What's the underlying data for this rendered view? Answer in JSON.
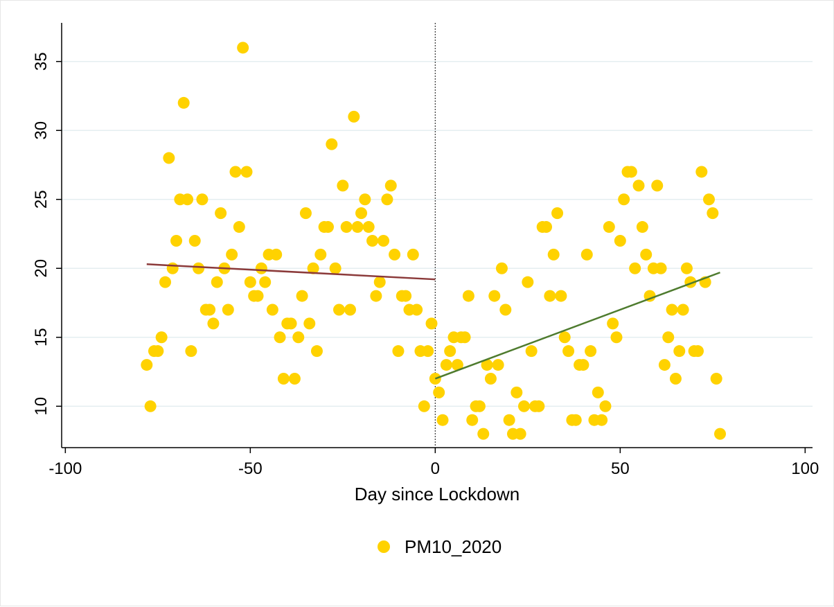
{
  "chart_data": {
    "type": "scatter",
    "title": "",
    "xlabel": "Day since Lockdown",
    "ylabel": "",
    "xlim": [
      -101,
      102
    ],
    "ylim": [
      7.0,
      37.8
    ],
    "xticks": [
      -100,
      -50,
      0,
      50,
      100
    ],
    "xtick_labels": [
      "-100",
      "-50",
      "0",
      "50",
      "100"
    ],
    "yticks": [
      10,
      15,
      20,
      25,
      30,
      35
    ],
    "ytick_labels": [
      "10",
      "15",
      "20",
      "25",
      "30",
      "35"
    ],
    "grid": "horizontal",
    "legend": {
      "position": "bottom-center",
      "entries": [
        "PM10_2020"
      ]
    },
    "colors": {
      "points": "#FFD200",
      "pre_fit": "#8B3A3A",
      "post_fit": "#4E7B2E",
      "grid": "#E4EEF0",
      "reference_line": "#333333"
    },
    "reference_line_x": 0,
    "series": [
      {
        "name": "PM10_2020",
        "points": [
          [
            -78,
            13
          ],
          [
            -77,
            10
          ],
          [
            -76,
            14
          ],
          [
            -75,
            14
          ],
          [
            -74,
            15
          ],
          [
            -73,
            19
          ],
          [
            -72,
            28
          ],
          [
            -71,
            20
          ],
          [
            -70,
            22
          ],
          [
            -69,
            25
          ],
          [
            -68,
            32
          ],
          [
            -67,
            25
          ],
          [
            -66,
            14
          ],
          [
            -65,
            22
          ],
          [
            -64,
            20
          ],
          [
            -63,
            25
          ],
          [
            -62,
            17
          ],
          [
            -61,
            17
          ],
          [
            -60,
            16
          ],
          [
            -59,
            19
          ],
          [
            -58,
            24
          ],
          [
            -57,
            20
          ],
          [
            -56,
            17
          ],
          [
            -55,
            21
          ],
          [
            -54,
            27
          ],
          [
            -53,
            23
          ],
          [
            -52,
            36
          ],
          [
            -51,
            27
          ],
          [
            -50,
            19
          ],
          [
            -49,
            18
          ],
          [
            -48,
            18
          ],
          [
            -47,
            20
          ],
          [
            -46,
            19
          ],
          [
            -45,
            21
          ],
          [
            -44,
            17
          ],
          [
            -43,
            21
          ],
          [
            -42,
            15
          ],
          [
            -41,
            12
          ],
          [
            -40,
            16
          ],
          [
            -39,
            16
          ],
          [
            -38,
            12
          ],
          [
            -37,
            15
          ],
          [
            -36,
            18
          ],
          [
            -35,
            24
          ],
          [
            -34,
            16
          ],
          [
            -33,
            20
          ],
          [
            -32,
            14
          ],
          [
            -31,
            21
          ],
          [
            -30,
            23
          ],
          [
            -29,
            23
          ],
          [
            -28,
            29
          ],
          [
            -27,
            20
          ],
          [
            -26,
            17
          ],
          [
            -25,
            26
          ],
          [
            -24,
            23
          ],
          [
            -23,
            17
          ],
          [
            -22,
            31
          ],
          [
            -21,
            23
          ],
          [
            -20,
            24
          ],
          [
            -19,
            25
          ],
          [
            -18,
            23
          ],
          [
            -17,
            22
          ],
          [
            -16,
            18
          ],
          [
            -15,
            19
          ],
          [
            -14,
            22
          ],
          [
            -13,
            25
          ],
          [
            -12,
            26
          ],
          [
            -11,
            21
          ],
          [
            -10,
            14
          ],
          [
            -9,
            18
          ],
          [
            -8,
            18
          ],
          [
            -7,
            17
          ],
          [
            -6,
            21
          ],
          [
            -5,
            17
          ],
          [
            -4,
            14
          ],
          [
            -3,
            10
          ],
          [
            -2,
            14
          ],
          [
            -1,
            16
          ],
          [
            0,
            12
          ],
          [
            1,
            11
          ],
          [
            2,
            9
          ],
          [
            3,
            13
          ],
          [
            4,
            14
          ],
          [
            5,
            15
          ],
          [
            6,
            13
          ],
          [
            7,
            15
          ],
          [
            8,
            15
          ],
          [
            9,
            18
          ],
          [
            10,
            9
          ],
          [
            11,
            10
          ],
          [
            12,
            10
          ],
          [
            13,
            8
          ],
          [
            14,
            13
          ],
          [
            15,
            12
          ],
          [
            16,
            18
          ],
          [
            17,
            13
          ],
          [
            18,
            20
          ],
          [
            19,
            17
          ],
          [
            20,
            9
          ],
          [
            21,
            8
          ],
          [
            22,
            11
          ],
          [
            23,
            8
          ],
          [
            24,
            10
          ],
          [
            25,
            19
          ],
          [
            26,
            14
          ],
          [
            27,
            10
          ],
          [
            28,
            10
          ],
          [
            29,
            23
          ],
          [
            30,
            23
          ],
          [
            31,
            18
          ],
          [
            32,
            21
          ],
          [
            33,
            24
          ],
          [
            34,
            18
          ],
          [
            35,
            15
          ],
          [
            36,
            14
          ],
          [
            37,
            9
          ],
          [
            38,
            9
          ],
          [
            39,
            13
          ],
          [
            40,
            13
          ],
          [
            41,
            21
          ],
          [
            42,
            14
          ],
          [
            43,
            9
          ],
          [
            44,
            11
          ],
          [
            45,
            9
          ],
          [
            46,
            10
          ],
          [
            47,
            23
          ],
          [
            48,
            16
          ],
          [
            49,
            15
          ],
          [
            50,
            22
          ],
          [
            51,
            25
          ],
          [
            52,
            27
          ],
          [
            53,
            27
          ],
          [
            54,
            20
          ],
          [
            55,
            26
          ],
          [
            56,
            23
          ],
          [
            57,
            21
          ],
          [
            58,
            18
          ],
          [
            59,
            20
          ],
          [
            60,
            26
          ],
          [
            61,
            20
          ],
          [
            62,
            13
          ],
          [
            63,
            15
          ],
          [
            64,
            17
          ],
          [
            65,
            12
          ],
          [
            66,
            14
          ],
          [
            67,
            17
          ],
          [
            68,
            20
          ],
          [
            69,
            19
          ],
          [
            70,
            14
          ],
          [
            71,
            14
          ],
          [
            72,
            27
          ],
          [
            73,
            19
          ],
          [
            74,
            25
          ],
          [
            75,
            24
          ],
          [
            76,
            12
          ],
          [
            77,
            8
          ]
        ]
      }
    ],
    "fit_lines": [
      {
        "segment": "pre-lockdown",
        "x": [
          -78,
          0
        ],
        "y": [
          20.3,
          19.2
        ]
      },
      {
        "segment": "post-lockdown",
        "x": [
          0,
          77
        ],
        "y": [
          12.0,
          19.7
        ]
      }
    ]
  }
}
